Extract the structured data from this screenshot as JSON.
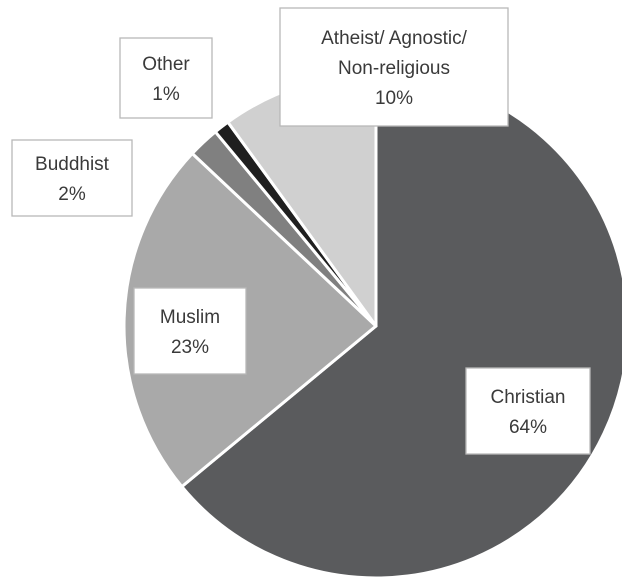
{
  "chart_data": {
    "type": "pie",
    "start_angle_deg": 0,
    "direction": "clockwise",
    "slices": [
      {
        "name": "Christian",
        "value": 64,
        "value_label": "64%",
        "color": "#5a5b5d"
      },
      {
        "name": "Muslim",
        "value": 23,
        "value_label": "23%",
        "color": "#a9a9a9"
      },
      {
        "name": "Buddhist",
        "value": 2,
        "value_label": "2%",
        "color": "#808080"
      },
      {
        "name": "Other",
        "value": 1,
        "value_label": "1%",
        "color": "#1f1f1f"
      },
      {
        "name": "Atheist/ Agnostic/ Non-religious",
        "value": 10,
        "value_label": "10%",
        "color": "#d0d0d0",
        "name_lines": [
          "Atheist/ Agnostic/",
          "Non-religious"
        ]
      }
    ],
    "slice_border_color": "#ffffff",
    "label_border_color": "#b8b8b8",
    "label_text_color": "#3a3a3a"
  }
}
